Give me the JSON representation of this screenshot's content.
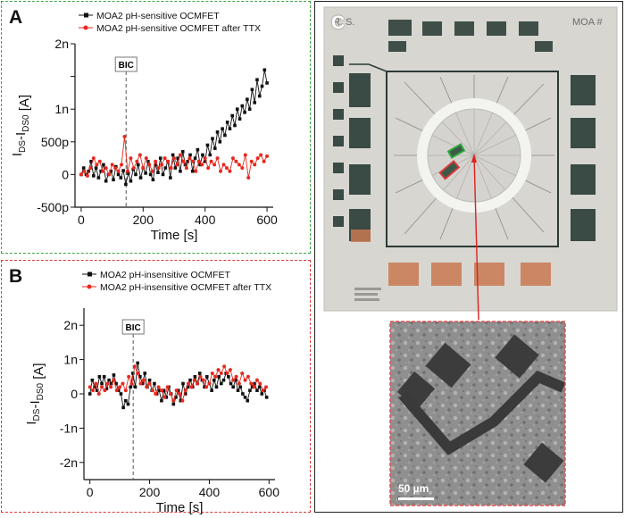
{
  "panels": {
    "a": {
      "label": "A"
    },
    "b": {
      "label": "B"
    },
    "c": {
      "label": "C",
      "chip_text_left": "R. S.",
      "chip_text_right": "MOA #",
      "scale_bar": "50 µm"
    }
  },
  "colors": {
    "black": "#111111",
    "red": "#e8281e",
    "green_border": "#3aa640",
    "red_border": "#d93a3a"
  },
  "chart_data": [
    {
      "type": "line",
      "title": "",
      "xlabel": "Time [s]",
      "ylabel_main": "I",
      "ylabel_sub1": "DS",
      "ylabel_mid": "-I",
      "ylabel_sub2": "DS0",
      "ylabel_tail": " [A]",
      "xlim": [
        -20,
        620
      ],
      "ylim": [
        -500,
        2000
      ],
      "x_ticks": [
        0,
        200,
        400,
        600
      ],
      "x_tick_labels": [
        "0",
        "200",
        "400",
        "600"
      ],
      "y_ticks": [
        -500,
        0,
        500,
        1000,
        1500,
        2000
      ],
      "y_tick_labels": [
        "-500p",
        "0",
        "500p",
        "1n",
        "",
        "2n"
      ],
      "annotation": {
        "text": "BIC",
        "x": 145
      },
      "series": [
        {
          "name": "MOA2 pH-sensitive OCMFET",
          "color": "#111111",
          "x": [
            0,
            8,
            16,
            24,
            32,
            40,
            48,
            56,
            64,
            72,
            80,
            88,
            96,
            104,
            112,
            120,
            128,
            136,
            144,
            152,
            160,
            168,
            176,
            184,
            192,
            200,
            208,
            216,
            224,
            232,
            240,
            248,
            256,
            264,
            272,
            280,
            288,
            296,
            304,
            312,
            320,
            328,
            336,
            344,
            352,
            360,
            368,
            376,
            384,
            392,
            400,
            408,
            416,
            424,
            432,
            440,
            448,
            456,
            464,
            472,
            480,
            488,
            496,
            504,
            512,
            520,
            528,
            536,
            544,
            552,
            560,
            568,
            576,
            584,
            592,
            600
          ],
          "y": [
            0,
            100,
            0,
            50,
            200,
            -20,
            100,
            -50,
            50,
            150,
            -100,
            0,
            50,
            -80,
            120,
            0,
            -50,
            60,
            -150,
            20,
            -100,
            80,
            0,
            150,
            -50,
            100,
            20,
            200,
            0,
            -80,
            150,
            30,
            250,
            0,
            100,
            200,
            -50,
            300,
            100,
            250,
            50,
            350,
            150,
            200,
            300,
            50,
            250,
            380,
            150,
            300,
            200,
            450,
            300,
            550,
            400,
            650,
            500,
            700,
            600,
            800,
            700,
            900,
            750,
            1000,
            850,
            1050,
            950,
            1150,
            1000,
            1300,
            1100,
            1450,
            1200,
            1350,
            1600,
            1400
          ]
        },
        {
          "name": "MOA2 pH-sensitive OCMFET after TTX",
          "color": "#e8281e",
          "x": [
            0,
            10,
            20,
            30,
            40,
            50,
            60,
            70,
            80,
            90,
            100,
            110,
            120,
            130,
            140,
            150,
            160,
            170,
            180,
            190,
            200,
            210,
            220,
            230,
            240,
            250,
            260,
            270,
            280,
            290,
            300,
            310,
            320,
            330,
            340,
            350,
            360,
            370,
            380,
            390,
            400,
            410,
            420,
            430,
            440,
            450,
            460,
            470,
            480,
            490,
            500,
            510,
            520,
            530,
            540,
            550,
            560,
            570,
            580,
            590,
            600
          ],
          "y": [
            0,
            50,
            -20,
            100,
            250,
            150,
            200,
            50,
            100,
            0,
            150,
            100,
            50,
            150,
            580,
            50,
            250,
            100,
            200,
            300,
            100,
            250,
            150,
            50,
            200,
            100,
            150,
            250,
            200,
            100,
            250,
            150,
            300,
            200,
            100,
            250,
            200,
            50,
            200,
            150,
            250,
            100,
            200,
            150,
            250,
            50,
            150,
            100,
            50,
            250,
            200,
            150,
            100,
            300,
            -50,
            200,
            150,
            250,
            300,
            200,
            280
          ]
        }
      ]
    },
    {
      "type": "line",
      "title": "",
      "xlabel": "Time [s]",
      "ylabel_main": "I",
      "ylabel_sub1": "DS",
      "ylabel_mid": "-I",
      "ylabel_sub2": "DS0",
      "ylabel_tail": " [A]",
      "xlim": [
        -20,
        620
      ],
      "ylim": [
        -2500,
        2500
      ],
      "x_ticks": [
        0,
        200,
        400,
        600
      ],
      "x_tick_labels": [
        "0",
        "200",
        "400",
        "600"
      ],
      "y_ticks": [
        -2000,
        -1000,
        0,
        1000,
        2000
      ],
      "y_tick_labels": [
        "-2n",
        "-1n",
        "0",
        "1n",
        "2n"
      ],
      "annotation": {
        "text": "BIC",
        "x": 145
      },
      "series": [
        {
          "name": "MOA2 pH-insensitive OCMFET",
          "color": "#111111",
          "x": [
            0,
            8,
            16,
            24,
            32,
            40,
            48,
            56,
            64,
            72,
            80,
            88,
            96,
            104,
            112,
            120,
            128,
            136,
            144,
            152,
            160,
            168,
            176,
            184,
            192,
            200,
            208,
            216,
            224,
            232,
            240,
            248,
            256,
            264,
            272,
            280,
            288,
            296,
            304,
            312,
            320,
            328,
            336,
            344,
            352,
            360,
            368,
            376,
            384,
            392,
            400,
            408,
            416,
            424,
            432,
            440,
            448,
            456,
            464,
            472,
            480,
            488,
            496,
            504,
            512,
            520,
            528,
            536,
            544,
            552,
            560,
            568,
            576,
            584,
            592
          ],
          "y": [
            0,
            400,
            200,
            100,
            500,
            300,
            500,
            150,
            400,
            300,
            550,
            300,
            100,
            0,
            -400,
            -200,
            -300,
            200,
            600,
            200,
            900,
            500,
            300,
            600,
            200,
            400,
            100,
            300,
            0,
            100,
            -200,
            100,
            -100,
            200,
            0,
            -300,
            -100,
            100,
            -200,
            300,
            0,
            200,
            400,
            200,
            500,
            300,
            600,
            400,
            200,
            500,
            300,
            100,
            400,
            200,
            500,
            300,
            400,
            600,
            500,
            300,
            200,
            400,
            100,
            200,
            0,
            -100,
            -200,
            100,
            200,
            300,
            100,
            200,
            0,
            100,
            -100
          ]
        },
        {
          "name": "MOA2 pH-insensitive OCMFET after TTX",
          "color": "#e8281e",
          "x": [
            0,
            10,
            20,
            30,
            40,
            50,
            60,
            70,
            80,
            90,
            100,
            110,
            120,
            130,
            140,
            150,
            160,
            170,
            180,
            190,
            200,
            210,
            220,
            230,
            240,
            250,
            260,
            270,
            280,
            290,
            300,
            310,
            320,
            330,
            340,
            350,
            360,
            370,
            380,
            390,
            400,
            410,
            420,
            430,
            440,
            450,
            460,
            470,
            480,
            490,
            500,
            510,
            520,
            530,
            540,
            550,
            560,
            570,
            580,
            590
          ],
          "y": [
            200,
            100,
            300,
            0,
            200,
            100,
            300,
            200,
            400,
            100,
            200,
            300,
            100,
            500,
            300,
            800,
            600,
            300,
            400,
            200,
            300,
            100,
            0,
            200,
            100,
            -100,
            200,
            0,
            -200,
            100,
            0,
            -200,
            100,
            300,
            200,
            400,
            300,
            500,
            400,
            200,
            300,
            600,
            500,
            700,
            600,
            800,
            600,
            700,
            400,
            500,
            300,
            600,
            400,
            500,
            300,
            200,
            400,
            300,
            100,
            200
          ]
        }
      ]
    }
  ]
}
